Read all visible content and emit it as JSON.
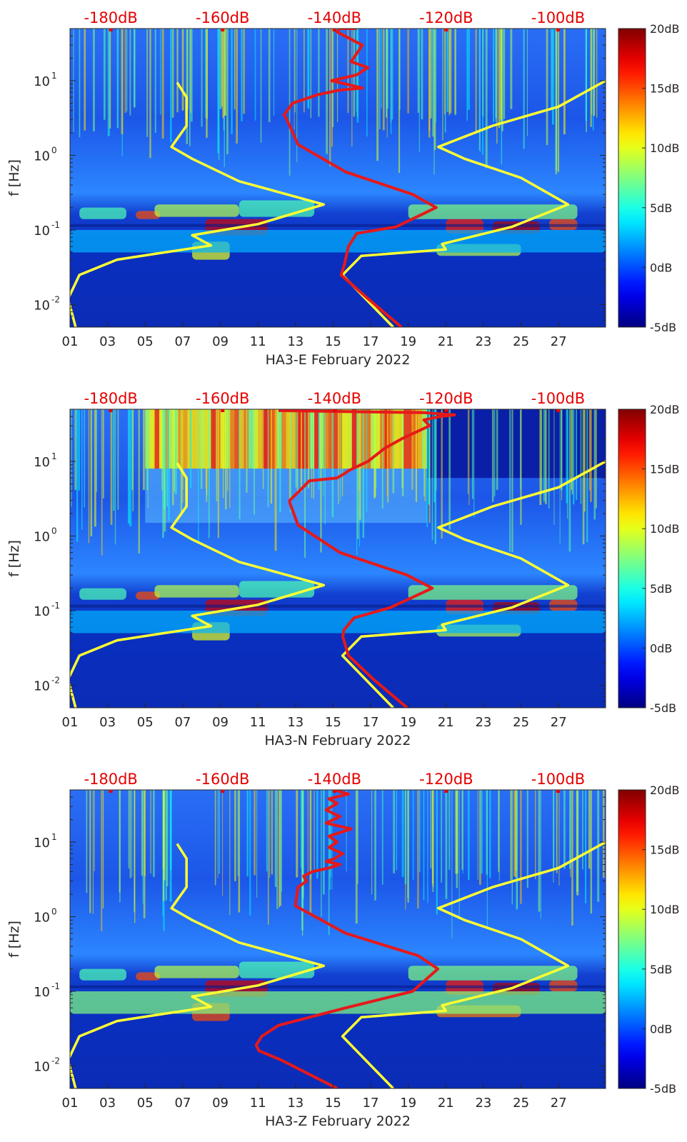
{
  "chart_data": [
    {
      "type": "heatmap",
      "station": "HA3-E",
      "xlabel": "HA3-E February 2022",
      "ylabel": "f [Hz]",
      "x_ticks": [
        "01",
        "03",
        "05",
        "07",
        "09",
        "11",
        "13",
        "15",
        "17",
        "19",
        "21",
        "23",
        "25",
        "27"
      ],
      "y_ticks": [
        {
          "value": 0.01,
          "label": "10",
          "exp": "-2"
        },
        {
          "value": 0.1,
          "label": "10",
          "exp": "-1"
        },
        {
          "value": 1,
          "label": "10",
          "exp": "0"
        },
        {
          "value": 10,
          "label": "10",
          "exp": "1"
        }
      ],
      "top_ticks": [
        "-180dB",
        "-160dB",
        "-140dB",
        "-120dB",
        "-100dB"
      ],
      "colorbar_ticks": [
        "20dB",
        "15dB",
        "10dB",
        "5dB",
        "0dB",
        "-5dB"
      ],
      "xlim": [
        1,
        29.5
      ],
      "ylim": [
        0.005,
        50
      ],
      "top_xlim": [
        -187.3,
        -91.5
      ],
      "color_range": [
        -5,
        20
      ],
      "series": [
        {
          "color": "#ffff33",
          "x": [
            1.3,
            0.9,
            1.5,
            3.5,
            6.0,
            8.5,
            7.5,
            11.0,
            14.5,
            10.0,
            7.5,
            6.4,
            7.2,
            7.2,
            6.7
          ],
          "y": [
            0.005,
            0.012,
            0.025,
            0.04,
            0.05,
            0.062,
            0.085,
            0.12,
            0.22,
            0.45,
            0.9,
            1.3,
            2.5,
            6.0,
            9.5
          ]
        },
        {
          "color": "#ffff33",
          "x": [
            18.2,
            15.5,
            16.5,
            21.0,
            20.8,
            24.5,
            27.5,
            25.0,
            22.0,
            20.6,
            23.5,
            27.0,
            29.5
          ],
          "y": [
            0.005,
            0.025,
            0.045,
            0.055,
            0.065,
            0.11,
            0.22,
            0.5,
            0.9,
            1.3,
            2.5,
            4.5,
            10.0
          ]
        },
        {
          "color": "#e61919",
          "x": [
            -128.0,
            -134.0,
            -138.8,
            -138.2,
            -137.5,
            -136.0,
            -129.0,
            -121.8,
            -126.0,
            -138.0,
            -146.5,
            -148.5,
            -149.0,
            -147.5,
            -143.0,
            -139.0,
            -135.0,
            -140.5,
            -136.0,
            -134.0,
            -137.0,
            -135.0,
            -139.5,
            -139.0,
            -136.0
          ],
          "y": [
            0.005,
            0.012,
            0.025,
            0.035,
            0.06,
            0.09,
            0.11,
            0.2,
            0.3,
            0.6,
            1.4,
            3.0,
            3.5,
            5.0,
            6.5,
            7.5,
            8.0,
            10.0,
            12.0,
            15.0,
            18.0,
            30.0,
            45.0,
            50.0,
            50.0
          ]
        }
      ]
    },
    {
      "type": "heatmap",
      "station": "HA3-N",
      "xlabel": "HA3-N February 2022",
      "ylabel": "f [Hz]",
      "x_ticks": [
        "01",
        "03",
        "05",
        "07",
        "09",
        "11",
        "13",
        "15",
        "17",
        "19",
        "21",
        "23",
        "25",
        "27"
      ],
      "y_ticks": [
        {
          "value": 0.01,
          "label": "10",
          "exp": "-2"
        },
        {
          "value": 0.1,
          "label": "10",
          "exp": "-1"
        },
        {
          "value": 1,
          "label": "10",
          "exp": "0"
        },
        {
          "value": 10,
          "label": "10",
          "exp": "1"
        }
      ],
      "top_ticks": [
        "-180dB",
        "-160dB",
        "-140dB",
        "-120dB",
        "-100dB"
      ],
      "colorbar_ticks": [
        "20dB",
        "15dB",
        "10dB",
        "5dB",
        "0dB",
        "-5dB"
      ],
      "xlim": [
        1,
        29.5
      ],
      "ylim": [
        0.005,
        50
      ],
      "top_xlim": [
        -187.3,
        -91.5
      ],
      "color_range": [
        -5,
        20
      ],
      "series": [
        {
          "color": "#ffff33",
          "x": [
            1.3,
            0.9,
            1.5,
            3.5,
            6.0,
            8.5,
            7.5,
            11.0,
            14.5,
            10.0,
            7.5,
            6.4,
            7.2,
            7.2,
            6.7
          ],
          "y": [
            0.005,
            0.012,
            0.025,
            0.04,
            0.05,
            0.062,
            0.085,
            0.12,
            0.22,
            0.45,
            0.9,
            1.3,
            2.5,
            6.0,
            9.5
          ]
        },
        {
          "color": "#ffff33",
          "x": [
            18.2,
            15.5,
            16.5,
            21.0,
            20.8,
            24.5,
            27.5,
            25.0,
            22.0,
            20.6,
            23.5,
            27.0,
            29.5
          ],
          "y": [
            0.005,
            0.025,
            0.045,
            0.055,
            0.065,
            0.11,
            0.22,
            0.5,
            0.9,
            1.3,
            2.5,
            4.5,
            10.0
          ]
        },
        {
          "color": "#e61919",
          "x": [
            -127.0,
            -133.0,
            -137.5,
            -138.5,
            -138.3,
            -136.5,
            -130.0,
            -122.5,
            -127.0,
            -139.0,
            -146.5,
            -148.0,
            -148.0,
            -146.0,
            -144.5,
            -139.5,
            -138.0,
            -137.5,
            -134.0,
            -131.0,
            -128.0,
            -123.0,
            -124.0,
            -121.0,
            -118.5,
            -124.0,
            -150.0
          ],
          "y": [
            0.005,
            0.012,
            0.025,
            0.045,
            0.055,
            0.08,
            0.11,
            0.2,
            0.3,
            0.6,
            1.4,
            2.8,
            3.0,
            4.2,
            5.5,
            6.0,
            7.0,
            7.5,
            10.0,
            15.0,
            20.0,
            30.0,
            36.0,
            40.0,
            42.0,
            45.0,
            48.0
          ]
        }
      ]
    },
    {
      "type": "heatmap",
      "station": "HA3-Z",
      "xlabel": "HA3-Z February 2022",
      "ylabel": "f [Hz]",
      "x_ticks": [
        "01",
        "03",
        "05",
        "07",
        "09",
        "11",
        "13",
        "15",
        "17",
        "19",
        "21",
        "23",
        "25",
        "27"
      ],
      "y_ticks": [
        {
          "value": 0.01,
          "label": "10",
          "exp": "-2"
        },
        {
          "value": 0.1,
          "label": "10",
          "exp": "-1"
        },
        {
          "value": 1,
          "label": "10",
          "exp": "0"
        },
        {
          "value": 10,
          "label": "10",
          "exp": "1"
        }
      ],
      "top_ticks": [
        "-180dB",
        "-160dB",
        "-140dB",
        "-120dB",
        "-100dB"
      ],
      "colorbar_ticks": [
        "20dB",
        "15dB",
        "10dB",
        "5dB",
        "0dB",
        "-5dB"
      ],
      "xlim": [
        1,
        29.5
      ],
      "ylim": [
        0.005,
        50
      ],
      "top_xlim": [
        -187.3,
        -91.5
      ],
      "color_range": [
        -5,
        20
      ],
      "series": [
        {
          "color": "#ffff33",
          "x": [
            1.3,
            0.9,
            1.5,
            3.5,
            6.0,
            8.5,
            7.5,
            11.0,
            14.5,
            10.0,
            7.5,
            6.4,
            7.2,
            7.2,
            6.7
          ],
          "y": [
            0.005,
            0.012,
            0.025,
            0.04,
            0.05,
            0.062,
            0.085,
            0.12,
            0.22,
            0.45,
            0.9,
            1.3,
            2.5,
            6.0,
            9.5
          ]
        },
        {
          "color": "#ffff33",
          "x": [
            18.2,
            15.5,
            16.5,
            21.0,
            20.8,
            24.5,
            27.5,
            25.0,
            22.0,
            20.6,
            23.5,
            27.0,
            29.5
          ],
          "y": [
            0.005,
            0.025,
            0.045,
            0.055,
            0.065,
            0.11,
            0.22,
            0.5,
            0.9,
            1.3,
            2.5,
            4.5,
            10.0
          ]
        },
        {
          "color": "#e61919",
          "x": [
            -139.5,
            -149.5,
            -153.5,
            -154.0,
            -153.0,
            -150.0,
            -138.0,
            -126.0,
            -121.5,
            -125.0,
            -138.0,
            -147.0,
            -146.5,
            -145.0,
            -145.5,
            -144.0,
            -141.0,
            -139.0,
            -141.5,
            -140.0,
            -138.5,
            -141.0,
            -139.5,
            -141.0,
            -137.0,
            -141.5,
            -139.0,
            -141.5,
            -139.5,
            -141.0,
            -137.5,
            -140.0
          ],
          "y": [
            0.005,
            0.012,
            0.016,
            0.019,
            0.025,
            0.035,
            0.06,
            0.1,
            0.2,
            0.3,
            0.6,
            1.4,
            2.5,
            3.0,
            3.5,
            4.0,
            4.5,
            5.0,
            5.5,
            6.0,
            7.0,
            8.5,
            10.0,
            12.0,
            15.0,
            18.0,
            22.0,
            27.0,
            33.0,
            38.0,
            44.0,
            50.0
          ]
        }
      ]
    }
  ]
}
